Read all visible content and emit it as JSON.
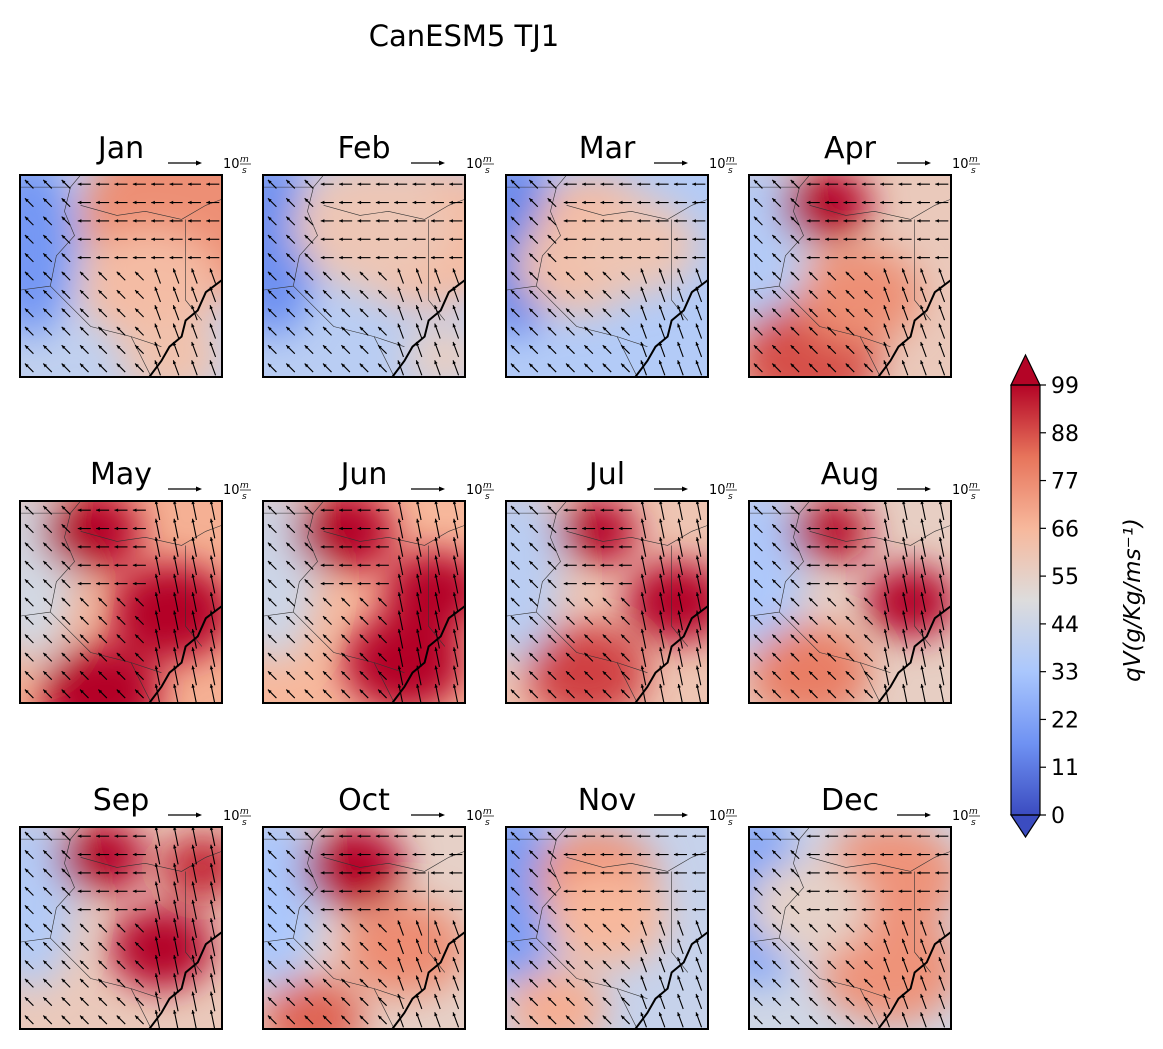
{
  "chart_data": {
    "type": "heatmap",
    "title": "CanESM5 TJ1",
    "panels": [
      {
        "month": "Jan",
        "blobs": [
          [
            0.85,
            0.2,
            30,
            0.55
          ],
          [
            0.65,
            0.55,
            20,
            0.35
          ],
          [
            0.75,
            0.9,
            18,
            0.25
          ]
        ],
        "base": 40
      },
      {
        "month": "Feb",
        "blobs": [
          [
            0.8,
            0.3,
            22,
            0.45
          ],
          [
            0.55,
            0.25,
            18,
            0.4
          ],
          [
            0.9,
            0.9,
            15,
            0.2
          ]
        ],
        "base": 38
      },
      {
        "month": "Mar",
        "blobs": [
          [
            0.45,
            0.25,
            25,
            0.3
          ],
          [
            0.35,
            0.45,
            22,
            0.3
          ],
          [
            0.65,
            0.35,
            20,
            0.3
          ]
        ],
        "base": 36
      },
      {
        "month": "Apr",
        "blobs": [
          [
            0.38,
            0.15,
            40,
            0.22
          ],
          [
            0.3,
            0.9,
            25,
            0.35
          ],
          [
            0.55,
            0.6,
            15,
            0.3
          ]
        ],
        "base": 58
      },
      {
        "month": "May",
        "blobs": [
          [
            0.35,
            0.15,
            40,
            0.25
          ],
          [
            0.75,
            0.55,
            40,
            0.3
          ],
          [
            0.4,
            0.95,
            45,
            0.3
          ]
        ],
        "base": 68
      },
      {
        "month": "Jun",
        "blobs": [
          [
            0.4,
            0.15,
            40,
            0.25
          ],
          [
            0.85,
            0.45,
            45,
            0.25
          ],
          [
            0.7,
            0.8,
            40,
            0.3
          ]
        ],
        "base": 66
      },
      {
        "month": "Jul",
        "blobs": [
          [
            0.45,
            0.15,
            38,
            0.2
          ],
          [
            0.85,
            0.5,
            50,
            0.25
          ],
          [
            0.4,
            0.85,
            25,
            0.3
          ]
        ],
        "base": 60
      },
      {
        "month": "Aug",
        "blobs": [
          [
            0.4,
            0.15,
            35,
            0.2
          ],
          [
            0.8,
            0.5,
            50,
            0.22
          ],
          [
            0.3,
            0.85,
            20,
            0.3
          ]
        ],
        "base": 56
      },
      {
        "month": "Sep",
        "blobs": [
          [
            0.4,
            0.15,
            35,
            0.22
          ],
          [
            0.7,
            0.6,
            35,
            0.25
          ],
          [
            0.9,
            0.2,
            30,
            0.2
          ]
        ],
        "base": 58
      },
      {
        "month": "Oct",
        "blobs": [
          [
            0.45,
            0.2,
            40,
            0.25
          ],
          [
            0.25,
            0.95,
            25,
            0.25
          ],
          [
            0.7,
            0.6,
            18,
            0.3
          ]
        ],
        "base": 55
      },
      {
        "month": "Nov",
        "blobs": [
          [
            0.45,
            0.25,
            28,
            0.3
          ],
          [
            0.5,
            0.45,
            20,
            0.3
          ],
          [
            0.25,
            0.9,
            22,
            0.25
          ]
        ],
        "base": 42
      },
      {
        "month": "Dec",
        "blobs": [
          [
            0.7,
            0.25,
            25,
            0.35
          ],
          [
            0.7,
            0.7,
            25,
            0.35
          ],
          [
            0.3,
            0.4,
            8,
            0.3
          ]
        ],
        "base": 45
      }
    ],
    "arrow_scale_label": "10",
    "arrow_scale_unit_num": "m",
    "arrow_scale_unit_den": "s",
    "colorbar": {
      "label": "qV(g/Kg/ms⁻¹)",
      "min": 0,
      "max": 99,
      "ticks": [
        "0",
        "11",
        "22",
        "33",
        "44",
        "55",
        "66",
        "77",
        "88",
        "99"
      ],
      "extend": "both",
      "colormap": [
        "#3b4cc0",
        "#6f92f3",
        "#aac7fd",
        "#dddcdc",
        "#f7b89c",
        "#e7745b",
        "#b40426"
      ]
    }
  }
}
